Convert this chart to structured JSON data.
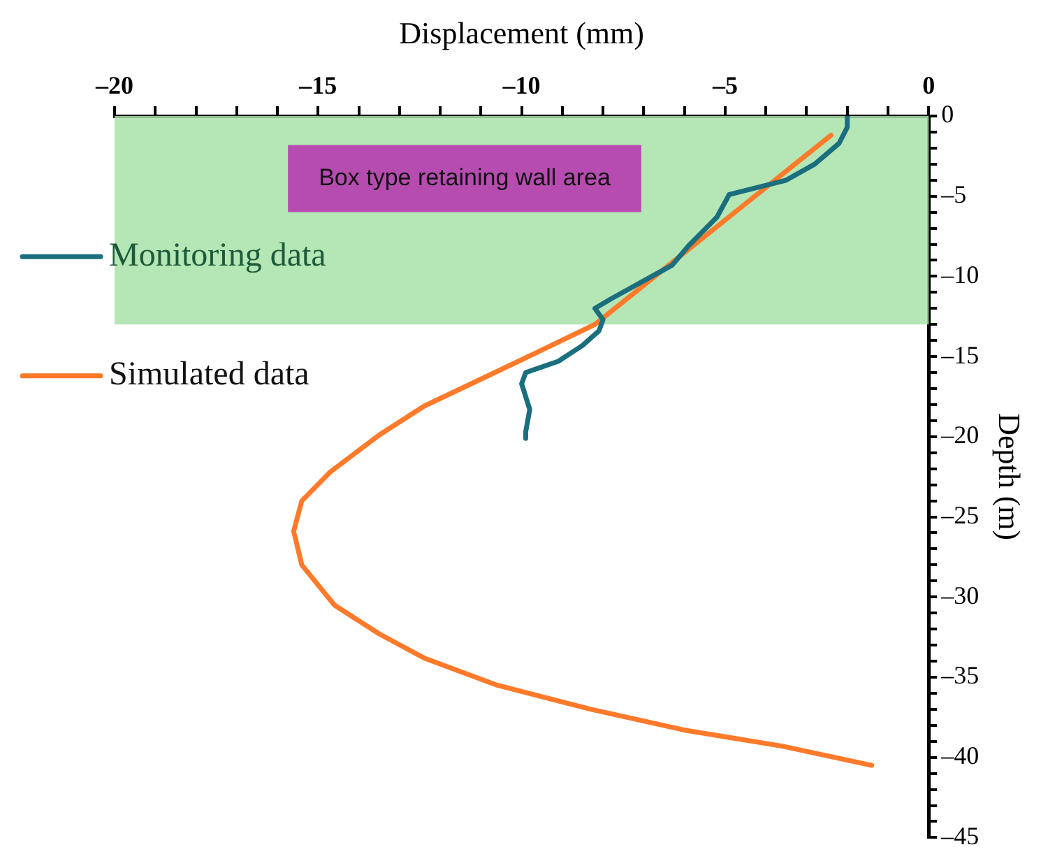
{
  "chart_data": {
    "type": "line",
    "xlabel": "Displacement (mm)",
    "ylabel": "Depth (m)",
    "xlim": [
      -20,
      0
    ],
    "ylim": [
      -45,
      0
    ],
    "xticks": [
      {
        "value": -20,
        "label": "–20"
      },
      {
        "value": -19,
        "label": null
      },
      {
        "value": -18,
        "label": null
      },
      {
        "value": -17,
        "label": null
      },
      {
        "value": -16,
        "label": null
      },
      {
        "value": -15,
        "label": "–15"
      },
      {
        "value": -14,
        "label": null
      },
      {
        "value": -13,
        "label": null
      },
      {
        "value": -12,
        "label": null
      },
      {
        "value": -11,
        "label": null
      },
      {
        "value": -10,
        "label": "–10"
      },
      {
        "value": -9,
        "label": null
      },
      {
        "value": -8,
        "label": null
      },
      {
        "value": -7,
        "label": null
      },
      {
        "value": -6,
        "label": null
      },
      {
        "value": -5,
        "label": "–5"
      },
      {
        "value": -4,
        "label": null
      },
      {
        "value": -3,
        "label": null
      },
      {
        "value": -2,
        "label": null
      },
      {
        "value": -1,
        "label": null
      },
      0
    ],
    "yticks": [
      0,
      {
        "value": -1,
        "label": null
      },
      {
        "value": -2,
        "label": null
      },
      {
        "value": -3,
        "label": null
      },
      {
        "value": -4,
        "label": null
      },
      {
        "value": -5,
        "label": "–5"
      },
      {
        "value": -6,
        "label": null
      },
      {
        "value": -7,
        "label": null
      },
      {
        "value": -8,
        "label": null
      },
      {
        "value": -9,
        "label": null
      },
      {
        "value": -10,
        "label": "–10"
      },
      {
        "value": -11,
        "label": null
      },
      {
        "value": -12,
        "label": null
      },
      {
        "value": -13,
        "label": null
      },
      {
        "value": -14,
        "label": null
      },
      {
        "value": -15,
        "label": "–15"
      },
      {
        "value": -16,
        "label": null
      },
      {
        "value": -17,
        "label": null
      },
      {
        "value": -18,
        "label": null
      },
      {
        "value": -19,
        "label": null
      },
      {
        "value": -20,
        "label": "–20"
      },
      {
        "value": -21,
        "label": null
      },
      {
        "value": -22,
        "label": null
      },
      {
        "value": -23,
        "label": null
      },
      {
        "value": -24,
        "label": null
      },
      {
        "value": -25,
        "label": "–25"
      },
      {
        "value": -26,
        "label": null
      },
      {
        "value": -27,
        "label": null
      },
      {
        "value": -28,
        "label": null
      },
      {
        "value": -29,
        "label": null
      },
      {
        "value": -30,
        "label": "–30"
      },
      {
        "value": -31,
        "label": null
      },
      {
        "value": -32,
        "label": null
      },
      {
        "value": -33,
        "label": null
      },
      {
        "value": -34,
        "label": null
      },
      {
        "value": -35,
        "label": "–35"
      },
      {
        "value": -36,
        "label": null
      },
      {
        "value": -37,
        "label": null
      },
      {
        "value": -38,
        "label": null
      },
      {
        "value": -39,
        "label": null
      },
      {
        "value": -40,
        "label": "–40"
      },
      {
        "value": -41,
        "label": null
      },
      {
        "value": -42,
        "label": null
      },
      {
        "value": -43,
        "label": null
      },
      {
        "value": -44,
        "label": null
      },
      {
        "value": -45,
        "label": "–45"
      }
    ],
    "legend": "left",
    "marker": "none",
    "bands": [
      {
        "axis": "y",
        "from": 0,
        "to": -13,
        "label": "Box type retaining wall area",
        "color": "#a8e2a8"
      }
    ],
    "series": [
      {
        "name": "Monitoring data",
        "color": "#1a6e7e",
        "x": [
          -2.0,
          -2.0,
          -2.2,
          -2.8,
          -3.5,
          -4.9,
          -5.2,
          -5.9,
          -6.3,
          -6.8,
          -7.8,
          -8.2,
          -8.0,
          -8.1,
          -8.5,
          -9.1,
          -9.9,
          -10.0,
          -9.8,
          -9.9,
          -9.9
        ],
        "values": [
          0,
          -0.7,
          -1.7,
          -3.0,
          -4.0,
          -4.9,
          -6.3,
          -8.1,
          -9.3,
          -10.0,
          -11.4,
          -12.0,
          -12.7,
          -13.4,
          -14.3,
          -15.3,
          -16.0,
          -16.7,
          -18.3,
          -19.7,
          -20.1
        ]
      },
      {
        "name": "Simulated data",
        "color": "#ff7a2a",
        "x": [
          -2.4,
          -5.3,
          -8.2,
          -10.0,
          -12.4,
          -13.5,
          -14.7,
          -15.4,
          -15.6,
          -15.4,
          -14.6,
          -13.5,
          -12.4,
          -10.6,
          -8.3,
          -6.0,
          -3.6,
          -1.4
        ],
        "values": [
          -1.2,
          -7.1,
          -13.0,
          -15.2,
          -18.1,
          -19.9,
          -22.2,
          -24.0,
          -25.9,
          -28.0,
          -30.5,
          -32.3,
          -33.8,
          -35.5,
          -37.0,
          -38.3,
          -39.3,
          -40.5
        ]
      }
    ]
  }
}
